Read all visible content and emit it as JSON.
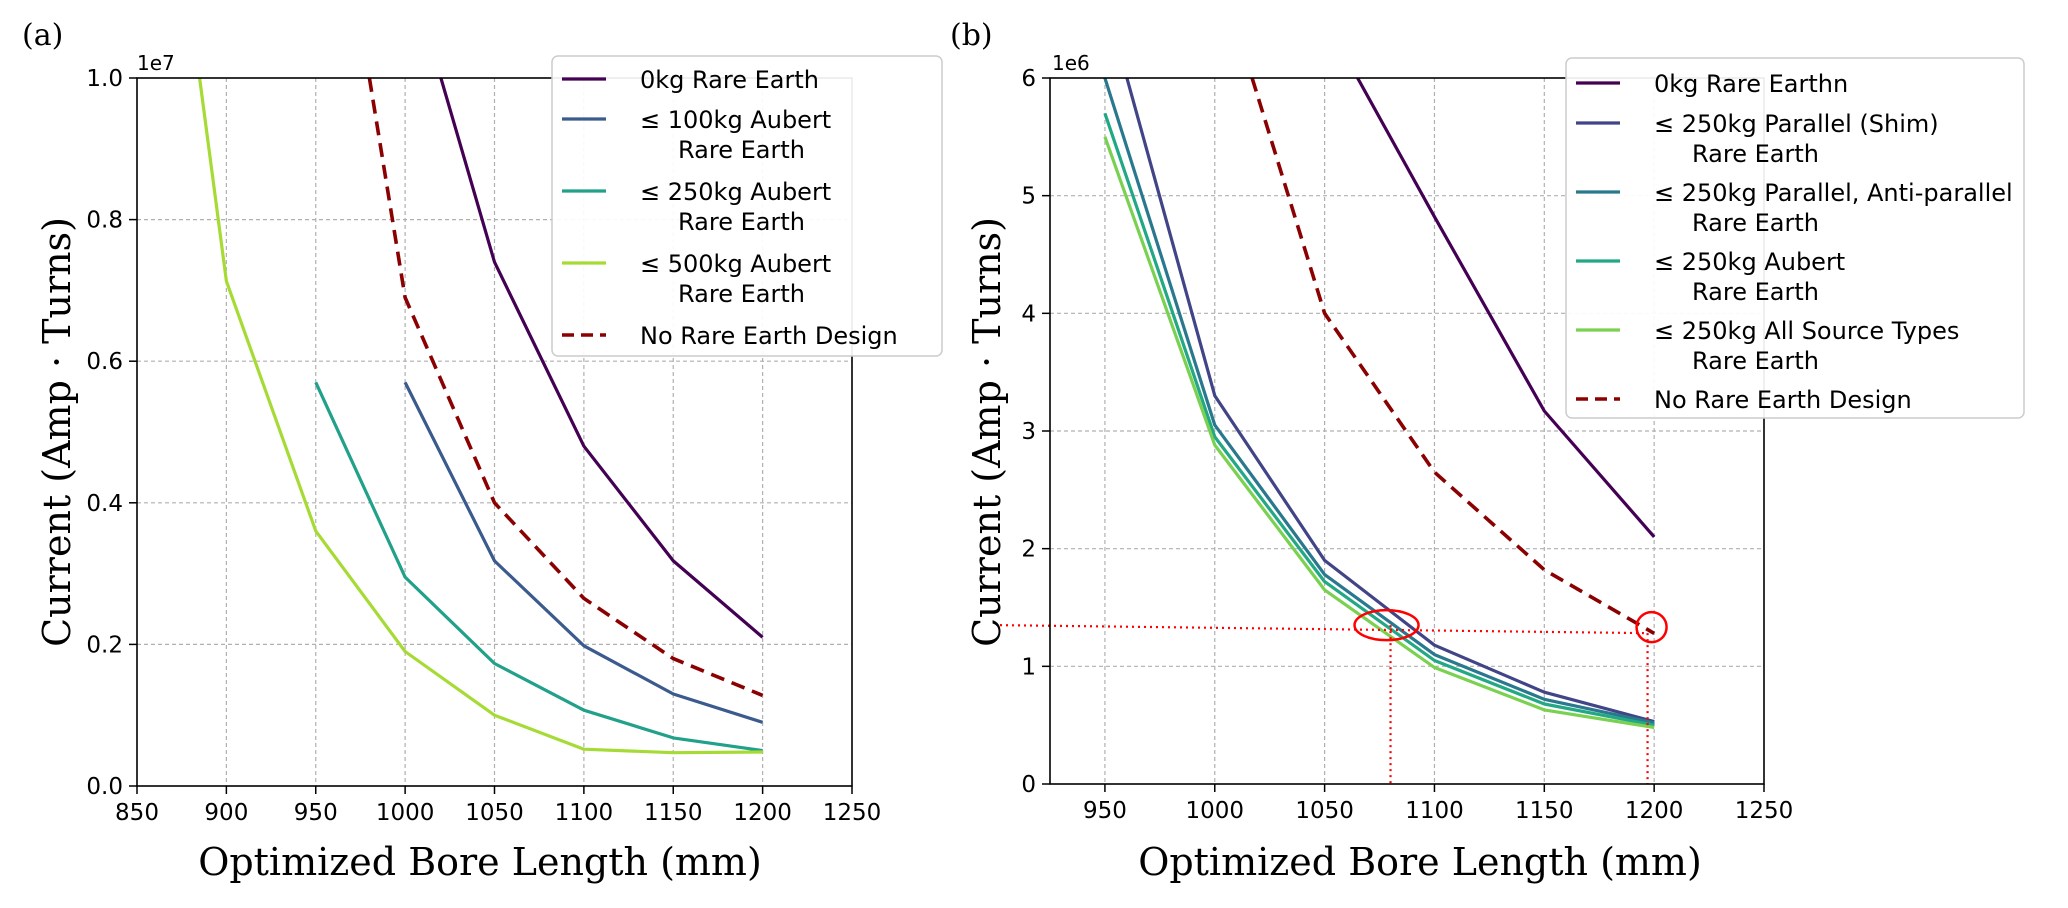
{
  "chart_data": [
    {
      "type": "line",
      "panel_label": "(a)",
      "xlabel": "Optimized Bore Length (mm)",
      "ylabel": "Current (Amp · Turns)",
      "y_multiplier": "1e7",
      "xlim": [
        850,
        1250
      ],
      "ylim": [
        0,
        1.0
      ],
      "xticks": [
        "850",
        "900",
        "950",
        "1000",
        "1050",
        "1100",
        "1150",
        "1200",
        "1250"
      ],
      "yticks": [
        "0.0",
        "0.2",
        "0.4",
        "0.6",
        "0.8",
        "1.0"
      ],
      "grid": true,
      "legend_position": "top-right",
      "series": [
        {
          "name": "0kg Rare Earth",
          "name_line2": "",
          "color": "#440154",
          "dashed": false,
          "x": [
            1020,
            1050,
            1100,
            1150,
            1200
          ],
          "y": [
            1.0,
            0.74,
            0.48,
            0.318,
            0.21
          ]
        },
        {
          "name": "≤ 100kg Aubert",
          "name_line2": "Rare Earth",
          "color": "#3b5a8e",
          "dashed": false,
          "x": [
            1000,
            1050,
            1100,
            1150,
            1200
          ],
          "y": [
            0.57,
            0.318,
            0.198,
            0.13,
            0.09
          ]
        },
        {
          "name": "≤ 250kg Aubert",
          "name_line2": "Rare Earth",
          "color": "#21a08a",
          "dashed": false,
          "x": [
            950,
            1000,
            1050,
            1100,
            1150,
            1200
          ],
          "y": [
            0.57,
            0.295,
            0.173,
            0.107,
            0.068,
            0.05
          ]
        },
        {
          "name": "≤ 500kg Aubert",
          "name_line2": "Rare Earth",
          "color": "#a6db35",
          "dashed": false,
          "x": [
            885,
            900,
            950,
            1000,
            1050,
            1100,
            1150,
            1200
          ],
          "y": [
            1.0,
            0.713,
            0.36,
            0.19,
            0.1,
            0.052,
            0.047,
            0.048
          ]
        },
        {
          "name": "No Rare Earth Design",
          "name_line2": "",
          "color": "#8b0000",
          "dashed": true,
          "x": [
            980,
            1000,
            1050,
            1100,
            1150,
            1200
          ],
          "y": [
            1.0,
            0.69,
            0.4,
            0.265,
            0.18,
            0.128
          ]
        }
      ]
    },
    {
      "type": "line",
      "panel_label": "(b)",
      "xlabel": "Optimized Bore Length (mm)",
      "ylabel": "Current (Amp · Turns)",
      "y_multiplier": "1e6",
      "xlim": [
        925,
        1250
      ],
      "ylim": [
        0,
        6
      ],
      "xticks": [
        "950",
        "1000",
        "1050",
        "1100",
        "1150",
        "1200",
        "1250"
      ],
      "xtick_values": [
        950,
        1000,
        1050,
        1100,
        1150,
        1200,
        1250
      ],
      "yticks": [
        "0",
        "1",
        "2",
        "3",
        "4",
        "5",
        "6"
      ],
      "grid": true,
      "legend_position": "top-right",
      "series": [
        {
          "name": "0kg Rare Earthn",
          "name_line2": "",
          "color": "#440154",
          "dashed": false,
          "x": [
            1065,
            1100,
            1150,
            1200
          ],
          "y": [
            6.0,
            4.82,
            3.17,
            2.1
          ]
        },
        {
          "name": "≤ 250kg Parallel (Shim)",
          "name_line2": "Rare Earth",
          "color": "#414487",
          "dashed": false,
          "x": [
            960,
            1000,
            1050,
            1100,
            1150,
            1200
          ],
          "y": [
            6.0,
            3.3,
            1.9,
            1.18,
            0.78,
            0.53
          ]
        },
        {
          "name": "≤ 250kg Parallel, Anti-parallel",
          "name_line2": "Rare Earth",
          "color": "#2a788e",
          "dashed": false,
          "x": [
            950,
            1000,
            1050,
            1100,
            1150,
            1200
          ],
          "y": [
            6.0,
            3.05,
            1.78,
            1.1,
            0.72,
            0.52
          ]
        },
        {
          "name": "≤ 250kg Aubert",
          "name_line2": "Rare Earth",
          "color": "#22a884",
          "dashed": false,
          "x": [
            950,
            1000,
            1050,
            1100,
            1150,
            1200
          ],
          "y": [
            5.7,
            2.95,
            1.72,
            1.05,
            0.68,
            0.5
          ]
        },
        {
          "name": "≤ 250kg All Source Types",
          "name_line2": "Rare Earth",
          "color": "#7ad151",
          "dashed": false,
          "x": [
            950,
            1000,
            1050,
            1100,
            1150,
            1200
          ],
          "y": [
            5.5,
            2.88,
            1.65,
            0.99,
            0.63,
            0.48
          ]
        },
        {
          "name": "No Rare Earth Design",
          "name_line2": "",
          "color": "#8b0000",
          "dashed": true,
          "x": [
            1017,
            1050,
            1100,
            1150,
            1200
          ],
          "y": [
            6.0,
            4.0,
            2.65,
            1.82,
            1.28
          ]
        }
      ],
      "annotations": {
        "reference_current": 1.35,
        "marked_lengths": [
          1080,
          1197
        ],
        "color": "#ff0000"
      }
    }
  ]
}
